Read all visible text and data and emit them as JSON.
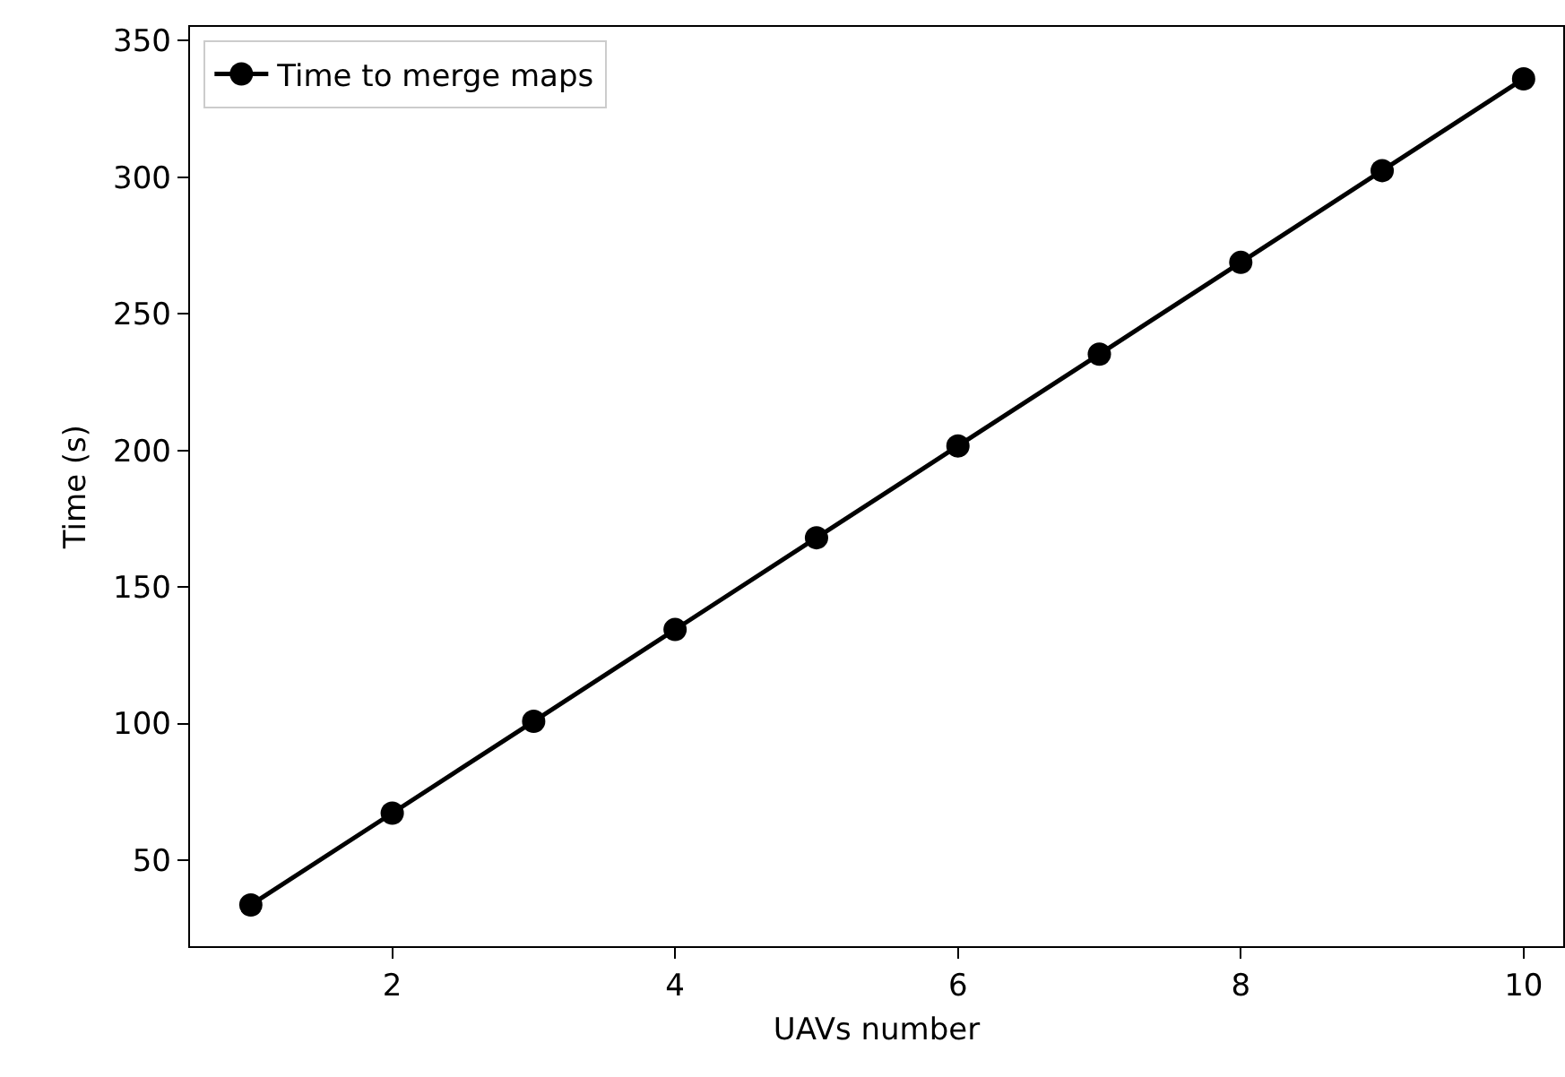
{
  "chart_data": {
    "type": "line",
    "xlabel": "UAVs number",
    "ylabel": "Time (s)",
    "x": [
      1,
      2,
      3,
      4,
      5,
      6,
      7,
      8,
      9,
      10
    ],
    "series": [
      {
        "name": "Time to merge maps",
        "color": "#000000",
        "values": [
          33.6,
          67.2,
          100.8,
          134.4,
          168,
          201.6,
          235.2,
          268.8,
          302.4,
          336
        ]
      }
    ],
    "xlim": [
      0.57,
      10.28
    ],
    "xticks": [
      2,
      4,
      6,
      8,
      10
    ],
    "ylim": [
      18.5,
      355
    ],
    "yticks": [
      50,
      100,
      150,
      200,
      250,
      300,
      350
    ],
    "grid": false,
    "legend": "top left",
    "marker": "circle",
    "line_style": "solid"
  }
}
